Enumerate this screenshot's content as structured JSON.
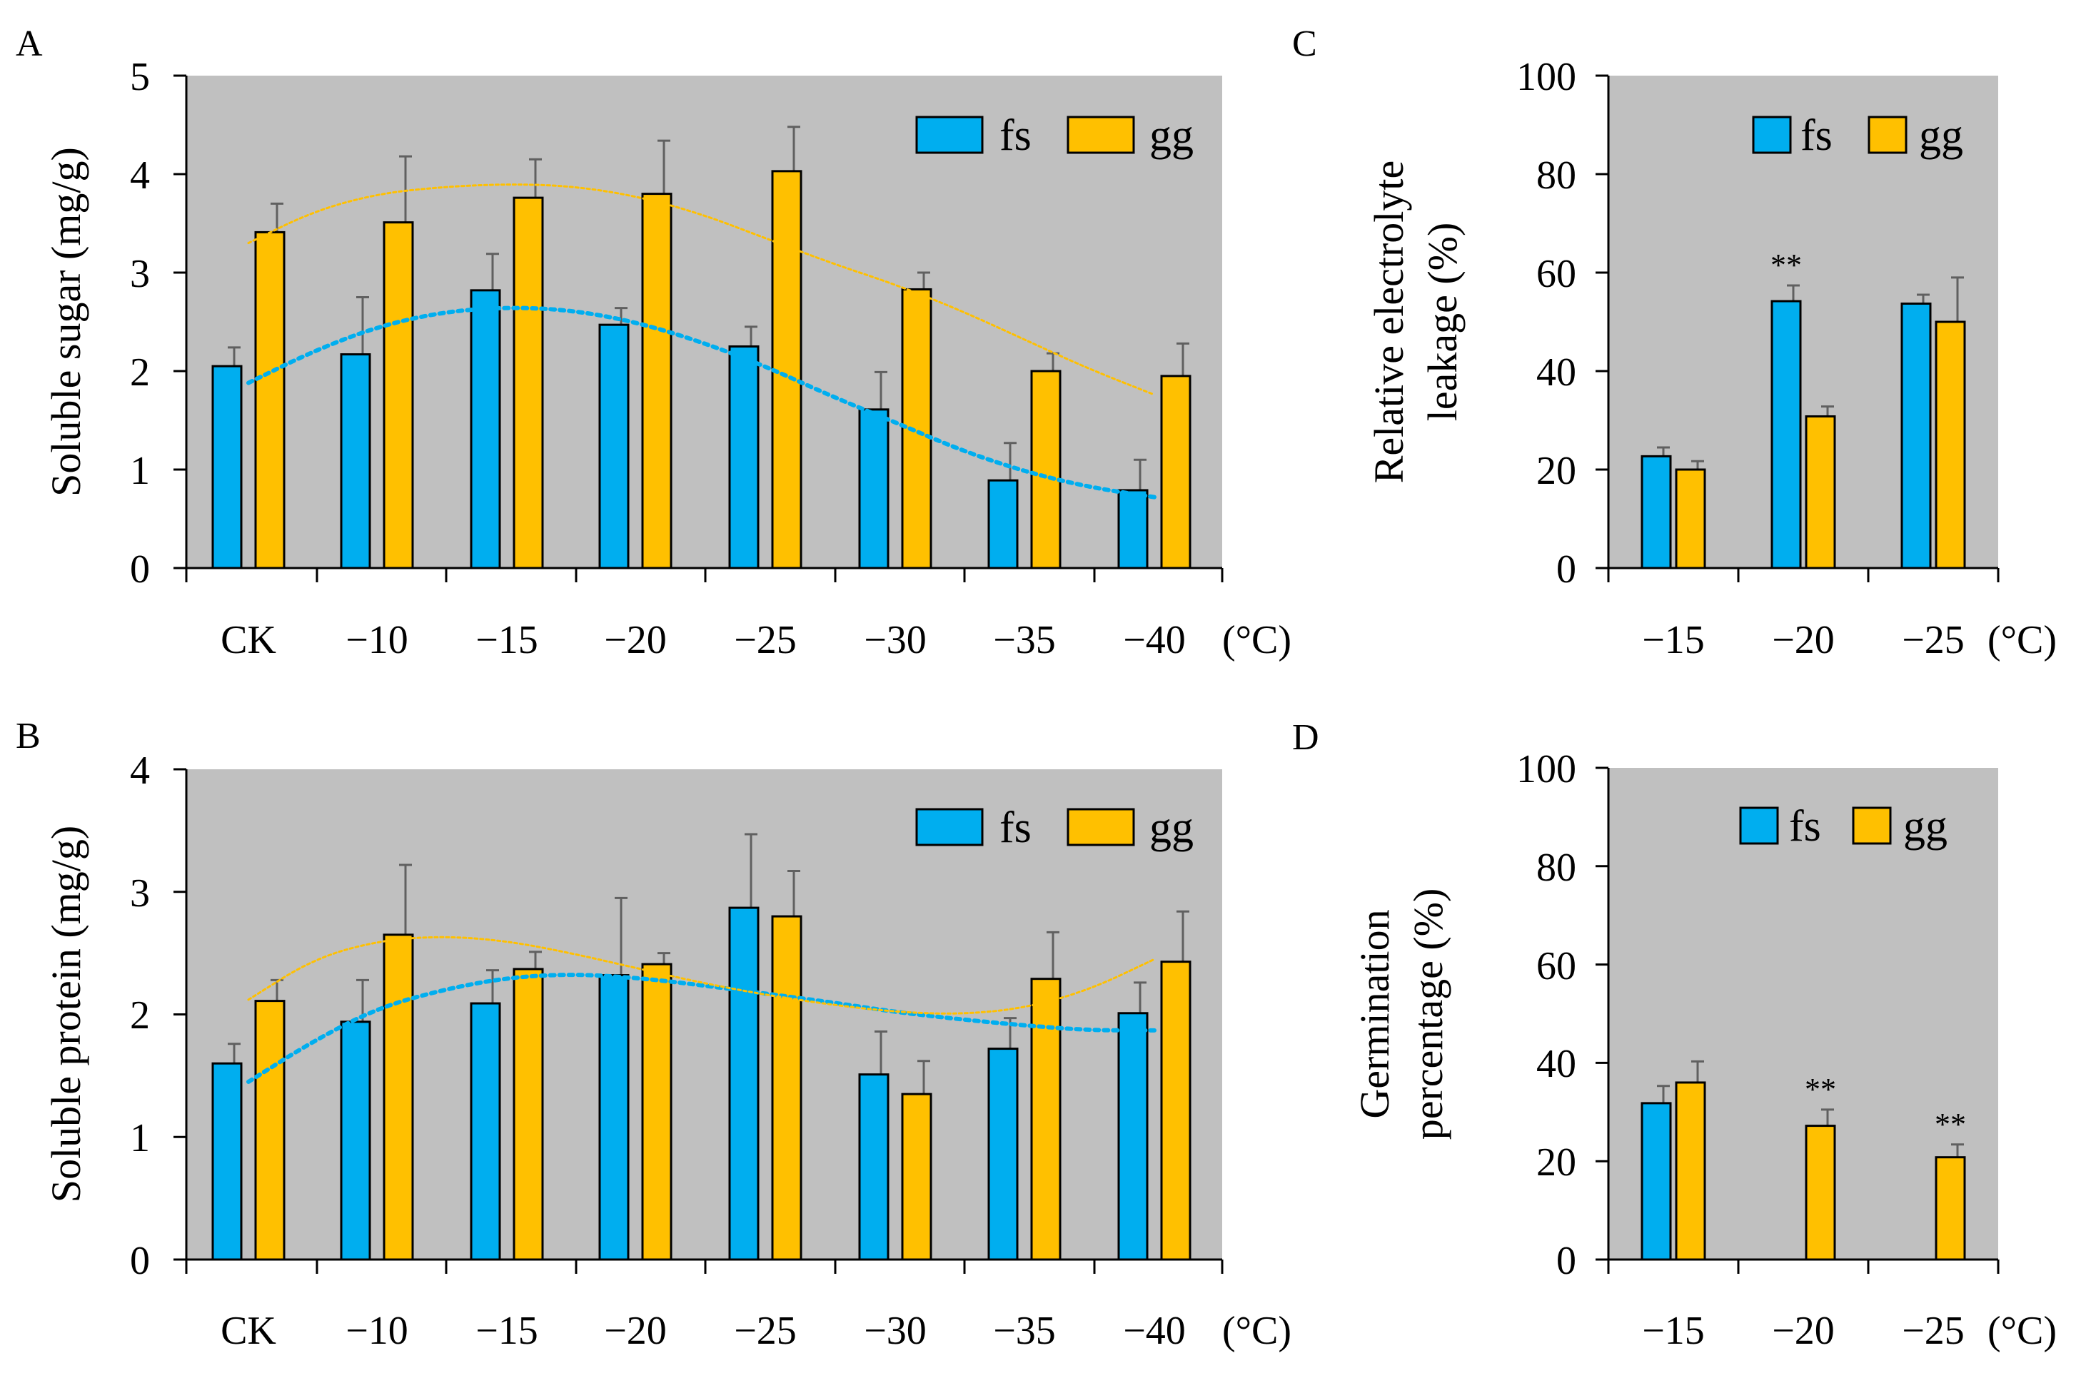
{
  "colors": {
    "fs": "#00AEEF",
    "gg": "#FFC000",
    "plot_bg": "#C0C0C0",
    "error": "#606060",
    "axis": "#000000"
  },
  "chart_data": [
    {
      "id": "A",
      "panel": "A",
      "type": "bar",
      "categories": [
        "CK",
        "−10",
        "−15",
        "−20",
        "−25",
        "−30",
        "−35",
        "−40"
      ],
      "unit_label": "(°C)",
      "ylabel": "Soluble sugar (mg/g)",
      "ylim": [
        0,
        5
      ],
      "yticks": [
        0,
        1,
        2,
        3,
        4,
        5
      ],
      "ytick_labels": [
        "0",
        "1",
        "2",
        "3",
        "4",
        "5"
      ],
      "legend": [
        "fs",
        "gg"
      ],
      "legend_position": "top-right",
      "series": [
        {
          "name": "fs",
          "values": [
            2.05,
            2.17,
            2.82,
            2.47,
            2.25,
            1.61,
            0.89,
            0.79
          ],
          "errors": [
            0.19,
            0.58,
            0.37,
            0.17,
            0.2,
            0.38,
            0.38,
            0.31
          ],
          "trend": [
            [
              0,
              1.88
            ],
            [
              0.5,
              2.2
            ],
            [
              1,
              2.45
            ],
            [
              1.5,
              2.6
            ],
            [
              2,
              2.65
            ],
            [
              2.5,
              2.62
            ],
            [
              3,
              2.5
            ],
            [
              3.5,
              2.3
            ],
            [
              4,
              2.05
            ],
            [
              4.5,
              1.75
            ],
            [
              5,
              1.48
            ],
            [
              5.5,
              1.2
            ],
            [
              6,
              0.98
            ],
            [
              6.5,
              0.82
            ],
            [
              7,
              0.72
            ]
          ]
        },
        {
          "name": "gg",
          "values": [
            3.41,
            3.51,
            3.76,
            3.8,
            4.03,
            2.83,
            2.0,
            1.95
          ],
          "errors": [
            0.29,
            0.67,
            0.39,
            0.54,
            0.45,
            0.17,
            0.18,
            0.33
          ],
          "trend": [
            [
              0,
              3.3
            ],
            [
              0.5,
              3.62
            ],
            [
              1,
              3.8
            ],
            [
              1.5,
              3.87
            ],
            [
              2,
              3.9
            ],
            [
              2.5,
              3.88
            ],
            [
              3,
              3.78
            ],
            [
              3.5,
              3.6
            ],
            [
              4,
              3.35
            ],
            [
              4.5,
              3.1
            ],
            [
              5,
              2.88
            ],
            [
              5.5,
              2.62
            ],
            [
              6,
              2.32
            ],
            [
              6.5,
              2.02
            ],
            [
              7,
              1.76
            ]
          ]
        }
      ],
      "significance": []
    },
    {
      "id": "B",
      "panel": "B",
      "type": "bar",
      "categories": [
        "CK",
        "−10",
        "−15",
        "−20",
        "−25",
        "−30",
        "−35",
        "−40"
      ],
      "unit_label": "(°C)",
      "ylabel": "Soluble protein (mg/g)",
      "ylim": [
        0,
        4
      ],
      "yticks": [
        0,
        1,
        2,
        3,
        4
      ],
      "ytick_labels": [
        "0",
        "1",
        "2",
        "3",
        "4"
      ],
      "legend": [
        "fs",
        "gg"
      ],
      "legend_position": "top-right",
      "series": [
        {
          "name": "fs",
          "values": [
            1.6,
            1.94,
            2.09,
            2.32,
            2.87,
            1.51,
            1.72,
            2.01
          ],
          "errors": [
            0.16,
            0.34,
            0.27,
            0.63,
            0.6,
            0.35,
            0.25,
            0.25
          ],
          "trend": [
            [
              0,
              1.45
            ],
            [
              0.5,
              1.78
            ],
            [
              1,
              2.05
            ],
            [
              1.5,
              2.2
            ],
            [
              2,
              2.3
            ],
            [
              2.5,
              2.33
            ],
            [
              3,
              2.3
            ],
            [
              3.5,
              2.24
            ],
            [
              4,
              2.17
            ],
            [
              4.5,
              2.1
            ],
            [
              5,
              2.02
            ],
            [
              5.5,
              1.96
            ],
            [
              6,
              1.91
            ],
            [
              6.5,
              1.87
            ],
            [
              7,
              1.87
            ]
          ]
        },
        {
          "name": "gg",
          "values": [
            2.11,
            2.65,
            2.37,
            2.41,
            2.8,
            1.35,
            2.29,
            2.43
          ],
          "errors": [
            0.17,
            0.57,
            0.14,
            0.09,
            0.37,
            0.27,
            0.38,
            0.41
          ],
          "trend": [
            [
              0,
              2.12
            ],
            [
              0.5,
              2.45
            ],
            [
              1,
              2.6
            ],
            [
              1.5,
              2.64
            ],
            [
              2,
              2.6
            ],
            [
              2.5,
              2.5
            ],
            [
              3,
              2.38
            ],
            [
              3.5,
              2.26
            ],
            [
              4,
              2.16
            ],
            [
              4.5,
              2.08
            ],
            [
              5,
              2.02
            ],
            [
              5.5,
              2.0
            ],
            [
              6,
              2.05
            ],
            [
              6.5,
              2.2
            ],
            [
              7,
              2.45
            ]
          ]
        }
      ],
      "significance": []
    },
    {
      "id": "C",
      "panel": "C",
      "type": "bar",
      "categories": [
        "−15",
        "−20",
        "−25"
      ],
      "unit_label": "(°C)",
      "ylabel_lines": [
        "Relative electrolyte",
        "leakage (%)"
      ],
      "ylim": [
        0,
        100
      ],
      "yticks": [
        0,
        20,
        40,
        60,
        80,
        100
      ],
      "ytick_labels": [
        "0",
        "20",
        "40",
        "60",
        "80",
        "100"
      ],
      "legend": [
        "fs",
        "gg"
      ],
      "legend_position": "top-right",
      "series": [
        {
          "name": "fs",
          "values": [
            22.7,
            54.2,
            53.7
          ],
          "errors": [
            1.8,
            3.2,
            1.8
          ]
        },
        {
          "name": "gg",
          "values": [
            20.0,
            30.8,
            50.0
          ],
          "errors": [
            1.7,
            2.0,
            9.0
          ]
        }
      ],
      "significance": [
        {
          "category": 1,
          "series": "fs",
          "label": "**"
        }
      ]
    },
    {
      "id": "D",
      "panel": "D",
      "type": "bar",
      "categories": [
        "−15",
        "−20",
        "−25"
      ],
      "unit_label": "(°C)",
      "ylabel_lines": [
        "Germination",
        "percentage (%)"
      ],
      "ylim": [
        0,
        100
      ],
      "yticks": [
        0,
        20,
        40,
        60,
        80,
        100
      ],
      "ytick_labels": [
        "0",
        "20",
        "40",
        "60",
        "80",
        "100"
      ],
      "legend": [
        "fs",
        "gg"
      ],
      "legend_position": "top-right",
      "series": [
        {
          "name": "fs",
          "values": [
            31.8,
            0,
            0
          ],
          "errors": [
            3.5,
            0,
            0
          ]
        },
        {
          "name": "gg",
          "values": [
            36.0,
            27.2,
            20.8
          ],
          "errors": [
            4.3,
            3.3,
            2.6
          ]
        }
      ],
      "significance": [
        {
          "category": 1,
          "series": "gg",
          "label": "**"
        },
        {
          "category": 2,
          "series": "gg",
          "label": "**"
        }
      ]
    }
  ]
}
